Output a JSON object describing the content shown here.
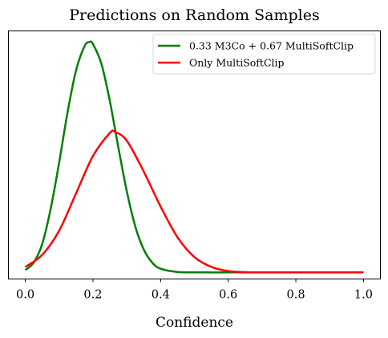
{
  "chart_data": {
    "type": "line",
    "title": "Predictions on Random Samples",
    "xlabel": "Confidence",
    "ylabel": "",
    "xlim": [
      -0.05,
      1.05
    ],
    "ylim": [
      -0.3,
      11.0
    ],
    "x_ticks": [
      "0.0",
      "0.2",
      "0.4",
      "0.6",
      "0.8",
      "1.0"
    ],
    "y_ticks": [],
    "legend_position": "top-right",
    "grid": false,
    "series": [
      {
        "name": "0.33 M3Co + 0.67 MultiSoftClip",
        "color": "#008000",
        "x": [
          0.0,
          0.025,
          0.05,
          0.075,
          0.1,
          0.125,
          0.15,
          0.175,
          0.19,
          0.2,
          0.225,
          0.25,
          0.275,
          0.3,
          0.325,
          0.35,
          0.375,
          0.4,
          0.45,
          0.5,
          0.6,
          0.7,
          0.8,
          0.9,
          1.0
        ],
        "y": [
          0.11,
          0.45,
          1.3,
          2.9,
          5.0,
          7.3,
          9.2,
          10.3,
          10.5,
          10.4,
          9.5,
          7.8,
          5.7,
          3.7,
          2.1,
          1.05,
          0.45,
          0.17,
          0.02,
          0.0,
          0.0,
          0.0,
          0.0,
          0.0,
          0.0
        ]
      },
      {
        "name": "Only MultiSoftClip",
        "color": "#ff0000",
        "x": [
          0.0,
          0.05,
          0.1,
          0.15,
          0.2,
          0.25,
          0.265,
          0.3,
          0.35,
          0.4,
          0.45,
          0.5,
          0.55,
          0.6,
          0.65,
          0.7,
          0.8,
          0.9,
          1.0
        ],
        "y": [
          0.25,
          0.8,
          1.9,
          3.6,
          5.3,
          6.35,
          6.4,
          6.0,
          4.6,
          3.0,
          1.6,
          0.7,
          0.25,
          0.06,
          0.01,
          0.0,
          0.0,
          0.0,
          0.0
        ]
      }
    ]
  }
}
